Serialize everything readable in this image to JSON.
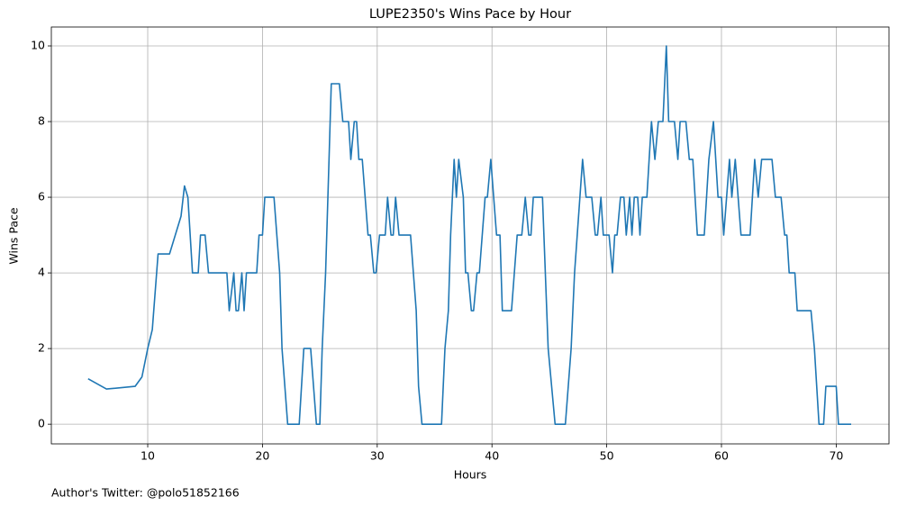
{
  "chart_data": {
    "type": "line",
    "title": "LUPE2350's Wins Pace by Hour",
    "xlabel": "Hours",
    "ylabel": "Wins Pace",
    "annotation": "Author's Twitter: @polo51852166",
    "color": "#1f77b4",
    "grid": true,
    "xlim": [
      1.6,
      74.6
    ],
    "ylim": [
      -0.52,
      10.5
    ],
    "xticks": [
      10,
      20,
      30,
      40,
      50,
      60,
      70
    ],
    "yticks": [
      0,
      2,
      4,
      6,
      8,
      10
    ],
    "x": [
      4.8,
      6.4,
      8.9,
      9.5,
      10.0,
      10.4,
      10.9,
      11.9,
      12.9,
      13.2,
      13.5,
      13.9,
      14.4,
      14.6,
      15.0,
      15.3,
      16.9,
      17.1,
      17.5,
      17.7,
      17.9,
      18.2,
      18.4,
      18.6,
      19.5,
      19.7,
      20.0,
      20.2,
      21.0,
      21.5,
      21.7,
      22.2,
      23.2,
      23.6,
      24.2,
      24.7,
      25.0,
      25.2,
      25.5,
      25.8,
      26.0,
      26.7,
      27.0,
      27.5,
      27.7,
      28.0,
      28.2,
      28.4,
      28.7,
      29.2,
      29.4,
      29.7,
      29.9,
      30.2,
      30.7,
      30.9,
      31.2,
      31.4,
      31.6,
      31.9,
      32.9,
      33.4,
      33.6,
      33.9,
      35.6,
      35.9,
      36.2,
      36.4,
      36.7,
      36.9,
      37.1,
      37.5,
      37.7,
      37.9,
      38.2,
      38.4,
      38.7,
      38.9,
      39.4,
      39.6,
      39.9,
      40.4,
      40.7,
      40.9,
      41.7,
      42.2,
      42.6,
      42.9,
      43.2,
      43.4,
      43.6,
      44.4,
      44.9,
      45.5,
      46.4,
      46.9,
      47.2,
      47.9,
      48.2,
      48.7,
      49.0,
      49.2,
      49.5,
      49.7,
      50.2,
      50.5,
      50.7,
      50.9,
      51.2,
      51.5,
      51.7,
      52.0,
      52.2,
      52.4,
      52.7,
      52.9,
      53.1,
      53.5,
      53.7,
      53.9,
      54.2,
      54.5,
      54.9,
      55.2,
      55.4,
      55.9,
      56.2,
      56.4,
      56.9,
      57.2,
      57.5,
      57.9,
      58.5,
      58.9,
      59.3,
      59.7,
      60.0,
      60.2,
      60.7,
      60.9,
      61.2,
      61.7,
      62.5,
      62.9,
      63.2,
      63.5,
      64.4,
      64.7,
      65.2,
      65.5,
      65.7,
      65.9,
      66.4,
      66.6,
      67.8,
      68.1,
      68.5,
      68.9,
      69.1,
      70.0,
      70.2,
      71.3
    ],
    "values": [
      1.2,
      0.93,
      1.0,
      1.25,
      2.0,
      2.5,
      4.5,
      4.5,
      5.5,
      6.3,
      6.0,
      4.0,
      4.0,
      5.0,
      5.0,
      4.0,
      4.0,
      3.0,
      4.0,
      3.0,
      3.0,
      4.0,
      3.0,
      4.0,
      4.0,
      5.0,
      5.0,
      6.0,
      6.0,
      4.0,
      2.0,
      0,
      0,
      2.0,
      2.0,
      0,
      0,
      2.0,
      4.0,
      7.0,
      9.0,
      9.0,
      8.0,
      8.0,
      7.0,
      8.0,
      8.0,
      7.0,
      7.0,
      5.0,
      5.0,
      4.0,
      4.0,
      5.0,
      5.0,
      6.0,
      5.0,
      5.0,
      6.0,
      5.0,
      5.0,
      3.0,
      1.0,
      0,
      0,
      2.0,
      3.0,
      5.0,
      7.0,
      6.0,
      7.0,
      6.0,
      4.0,
      4.0,
      3.0,
      3.0,
      4.0,
      4.0,
      6.0,
      6.0,
      7.0,
      5.0,
      5.0,
      3.0,
      3.0,
      5.0,
      5.0,
      6.0,
      5.0,
      5.0,
      6.0,
      6.0,
      2.0,
      0,
      0,
      2.0,
      4.0,
      7.0,
      6.0,
      6.0,
      5.0,
      5.0,
      6.0,
      5.0,
      5.0,
      4.0,
      5.0,
      5.0,
      6.0,
      6.0,
      5.0,
      6.0,
      5.0,
      6.0,
      6.0,
      5.0,
      6.0,
      6.0,
      7.0,
      8.0,
      7.0,
      8.0,
      8.0,
      10.0,
      8.0,
      8.0,
      7.0,
      8.0,
      8.0,
      7.0,
      7.0,
      5.0,
      5.0,
      7.0,
      8.0,
      6.0,
      6.0,
      5.0,
      7.0,
      6.0,
      7.0,
      5.0,
      5.0,
      7.0,
      6.0,
      7.0,
      7.0,
      6.0,
      6.0,
      5.0,
      5.0,
      4.0,
      4.0,
      3.0,
      3.0,
      2.0,
      0,
      0,
      1.0,
      1.0,
      0,
      0
    ]
  }
}
